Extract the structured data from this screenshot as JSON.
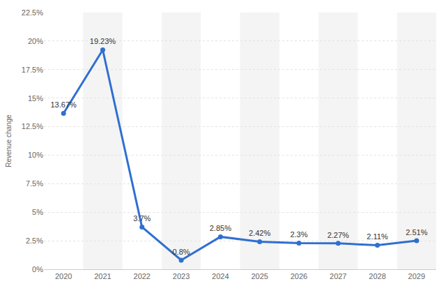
{
  "chart_data": {
    "type": "line",
    "y_label": "Revenue change",
    "categories": [
      "2020",
      "2021",
      "2022",
      "2023",
      "2024",
      "2025",
      "2026",
      "2027",
      "2028",
      "2029"
    ],
    "values": [
      13.67,
      19.23,
      3.7,
      0.8,
      2.85,
      2.42,
      2.3,
      2.27,
      2.11,
      2.51
    ],
    "value_labels": [
      "13.67%",
      "19.23%",
      "3.7%",
      "0.8%",
      "2.85%",
      "2.42%",
      "2.3%",
      "2.27%",
      "2.11%",
      "2.51%"
    ],
    "data_labels": true,
    "color": "#2f6fd0",
    "marker": "circle",
    "ylim": [
      0,
      22.5
    ],
    "yticks": [
      {
        "value": 0,
        "label": "0%"
      },
      {
        "value": 2.5,
        "label": "2.5%"
      },
      {
        "value": 5,
        "label": "5%"
      },
      {
        "value": 7.5,
        "label": "7.5%"
      },
      {
        "value": 10,
        "label": "10%"
      },
      {
        "value": 12.5,
        "label": "12.5%"
      },
      {
        "value": 15,
        "label": "15%"
      },
      {
        "value": 17.5,
        "label": "17.5%"
      },
      {
        "value": 20,
        "label": "20%"
      },
      {
        "value": 22.5,
        "label": "22.5%"
      }
    ],
    "grid": true
  }
}
